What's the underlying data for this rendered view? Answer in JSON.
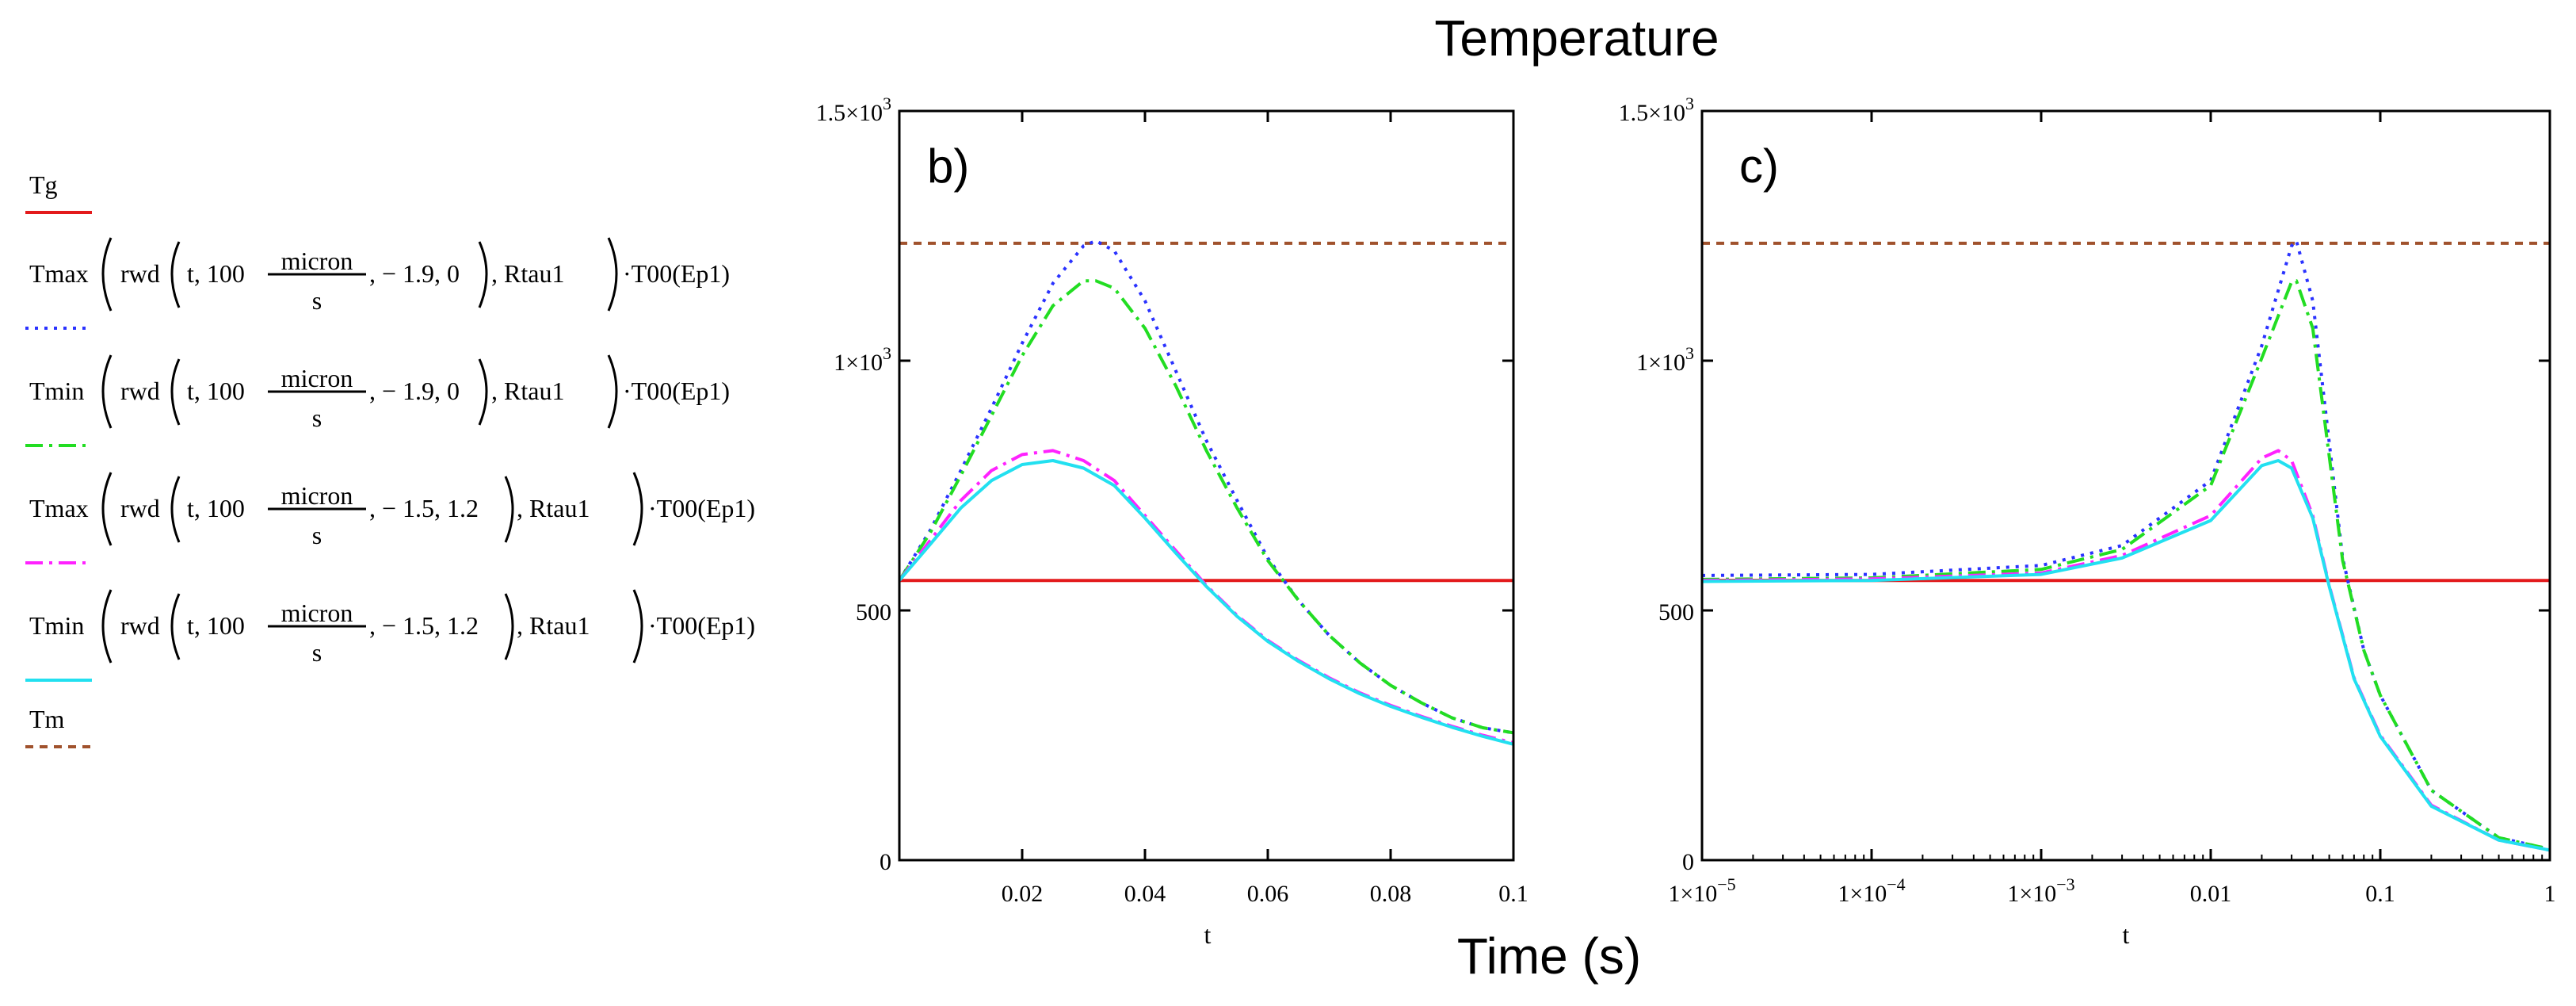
{
  "figure": {
    "title": "Temperature",
    "xlabel": "Time (s)"
  },
  "legend": {
    "entries": [
      {
        "id": "Tg",
        "label": "Tg",
        "color": "#e31a1c",
        "dash": "solid"
      },
      {
        "id": "s1",
        "label": "Tmax(rwd(t, 100 micron/s, − 1.9, 0), Rtau1)·T00(Ep1)",
        "func": "Tmax",
        "param": "− 1.9, 0",
        "color": "#2a32ff",
        "dash": "dot"
      },
      {
        "id": "s2",
        "label": "Tmin(rwd(t, 100 micron/s, − 1.9, 0), Rtau1)·T00(Ep1)",
        "func": "Tmin",
        "param": "− 1.9, 0",
        "color": "#22dd22",
        "dash": "dashdot"
      },
      {
        "id": "s3",
        "label": "Tmax(rwd(t, 100 micron/s, − 1.5, 1.2), Rtau1)·T00(Ep1)",
        "func": "Tmax",
        "param": "− 1.5, 1.2",
        "color": "#ff22ff",
        "dash": "dashdot"
      },
      {
        "id": "s4",
        "label": "Tmin(rwd(t, 100 micron/s, − 1.5, 1.2), Rtau1)·T00(Ep1)",
        "func": "Tmin",
        "param": "− 1.5, 1.2",
        "color": "#22e0f0",
        "dash": "solid"
      },
      {
        "id": "Tm",
        "label": "Tm",
        "color": "#a0522d",
        "dash": "dash"
      }
    ],
    "tokens": {
      "rwd": "rwd",
      "t_arg": "t, 100",
      "micron": "micron",
      "s": "s",
      "comma": ",",
      "rtau": ", Rtau1",
      "t00": "·T00(Ep1)"
    }
  },
  "chart_data": [
    {
      "type": "line",
      "panel_label": "b)",
      "xlabel": "t",
      "xscale": "linear",
      "xlim": [
        0,
        0.1
      ],
      "ylim": [
        0,
        1500
      ],
      "xticks": [
        {
          "v": 0.02,
          "label": "0.02"
        },
        {
          "v": 0.04,
          "label": "0.04"
        },
        {
          "v": 0.06,
          "label": "0.06"
        },
        {
          "v": 0.08,
          "label": "0.08"
        },
        {
          "v": 0.1,
          "label": "0.1"
        }
      ],
      "yticks": [
        {
          "v": 0,
          "label": "0"
        },
        {
          "v": 500,
          "label": "500"
        },
        {
          "v": 1000,
          "label": "1×10",
          "sup": "3"
        },
        {
          "v": 1500,
          "label": "1.5×10",
          "sup": "3"
        }
      ],
      "series": [
        {
          "ref": "Tg",
          "x": [
            0,
            0.1
          ],
          "y": [
            560,
            560
          ]
        },
        {
          "ref": "Tm",
          "x": [
            0,
            0.1
          ],
          "y": [
            1235,
            1235
          ]
        },
        {
          "ref": "s1",
          "x": [
            0,
            0.005,
            0.01,
            0.015,
            0.02,
            0.025,
            0.03,
            0.032,
            0.035,
            0.04,
            0.045,
            0.05,
            0.055,
            0.06,
            0.065,
            0.07,
            0.075,
            0.08,
            0.085,
            0.09,
            0.095,
            0.1
          ],
          "y": [
            560,
            660,
            780,
            905,
            1035,
            1155,
            1230,
            1240,
            1220,
            1120,
            980,
            840,
            720,
            605,
            520,
            450,
            395,
            350,
            315,
            285,
            265,
            255
          ]
        },
        {
          "ref": "s2",
          "x": [
            0,
            0.005,
            0.01,
            0.015,
            0.02,
            0.025,
            0.03,
            0.032,
            0.035,
            0.04,
            0.045,
            0.05,
            0.055,
            0.06,
            0.065,
            0.07,
            0.075,
            0.08,
            0.085,
            0.09,
            0.095,
            0.1
          ],
          "y": [
            560,
            655,
            770,
            890,
            1010,
            1110,
            1160,
            1160,
            1145,
            1065,
            950,
            820,
            705,
            600,
            520,
            450,
            395,
            350,
            315,
            285,
            265,
            255
          ]
        },
        {
          "ref": "s3",
          "x": [
            0,
            0.005,
            0.01,
            0.015,
            0.02,
            0.025,
            0.03,
            0.035,
            0.04,
            0.045,
            0.05,
            0.055,
            0.06,
            0.065,
            0.07,
            0.075,
            0.08,
            0.085,
            0.09,
            0.095,
            0.1
          ],
          "y": [
            560,
            640,
            720,
            780,
            812,
            820,
            800,
            760,
            690,
            620,
            550,
            490,
            440,
            400,
            365,
            335,
            310,
            288,
            268,
            250,
            235
          ]
        },
        {
          "ref": "s4",
          "x": [
            0,
            0.005,
            0.01,
            0.015,
            0.02,
            0.025,
            0.03,
            0.035,
            0.04,
            0.045,
            0.05,
            0.055,
            0.06,
            0.065,
            0.07,
            0.075,
            0.08,
            0.085,
            0.09,
            0.095,
            0.1
          ],
          "y": [
            560,
            632,
            705,
            760,
            792,
            800,
            785,
            750,
            685,
            615,
            548,
            488,
            438,
            398,
            363,
            333,
            308,
            286,
            266,
            248,
            232
          ]
        }
      ]
    },
    {
      "type": "line",
      "panel_label": "c)",
      "xlabel": "t",
      "xscale": "log",
      "xlim": [
        1e-05,
        1
      ],
      "ylim": [
        0,
        1500
      ],
      "xticks": [
        {
          "v": 1e-05,
          "label": "1×10",
          "sup": "−5"
        },
        {
          "v": 0.0001,
          "label": "1×10",
          "sup": "−4"
        },
        {
          "v": 0.001,
          "label": "1×10",
          "sup": "−3"
        },
        {
          "v": 0.01,
          "label": "0.01"
        },
        {
          "v": 0.1,
          "label": "0.1"
        },
        {
          "v": 1,
          "label": "1"
        }
      ],
      "yticks": [
        {
          "v": 0,
          "label": "0"
        },
        {
          "v": 500,
          "label": "500"
        },
        {
          "v": 1000,
          "label": "1×10",
          "sup": "3"
        },
        {
          "v": 1500,
          "label": "1.5×10",
          "sup": "3"
        }
      ],
      "series": [
        {
          "ref": "Tg",
          "x": [
            1e-05,
            1
          ],
          "y": [
            560,
            560
          ]
        },
        {
          "ref": "Tm",
          "x": [
            1e-05,
            1
          ],
          "y": [
            1235,
            1235
          ]
        },
        {
          "ref": "s1",
          "x": [
            1e-05,
            0.0001,
            0.001,
            0.003,
            0.01,
            0.02,
            0.03,
            0.032,
            0.04,
            0.06,
            0.08,
            0.1,
            0.2,
            0.5,
            1
          ],
          "y": [
            570,
            572,
            590,
            630,
            760,
            1030,
            1230,
            1240,
            1120,
            605,
            420,
            330,
            140,
            45,
            22
          ]
        },
        {
          "ref": "s2",
          "x": [
            1e-05,
            0.0001,
            0.001,
            0.003,
            0.01,
            0.02,
            0.03,
            0.032,
            0.04,
            0.06,
            0.08,
            0.1,
            0.2,
            0.5,
            1
          ],
          "y": [
            562,
            565,
            582,
            622,
            750,
            1005,
            1158,
            1160,
            1065,
            600,
            420,
            330,
            140,
            45,
            22
          ]
        },
        {
          "ref": "s3",
          "x": [
            1e-05,
            0.0001,
            0.001,
            0.003,
            0.01,
            0.02,
            0.025,
            0.03,
            0.04,
            0.05,
            0.07,
            0.1,
            0.2,
            0.5,
            1
          ],
          "y": [
            560,
            563,
            575,
            610,
            690,
            805,
            820,
            800,
            690,
            550,
            365,
            250,
            110,
            40,
            20
          ]
        },
        {
          "ref": "s4",
          "x": [
            1e-05,
            0.0001,
            0.001,
            0.003,
            0.01,
            0.02,
            0.025,
            0.03,
            0.04,
            0.05,
            0.07,
            0.1,
            0.2,
            0.5,
            1
          ],
          "y": [
            558,
            560,
            572,
            605,
            680,
            790,
            800,
            785,
            685,
            548,
            363,
            248,
            108,
            40,
            20
          ]
        }
      ]
    }
  ]
}
